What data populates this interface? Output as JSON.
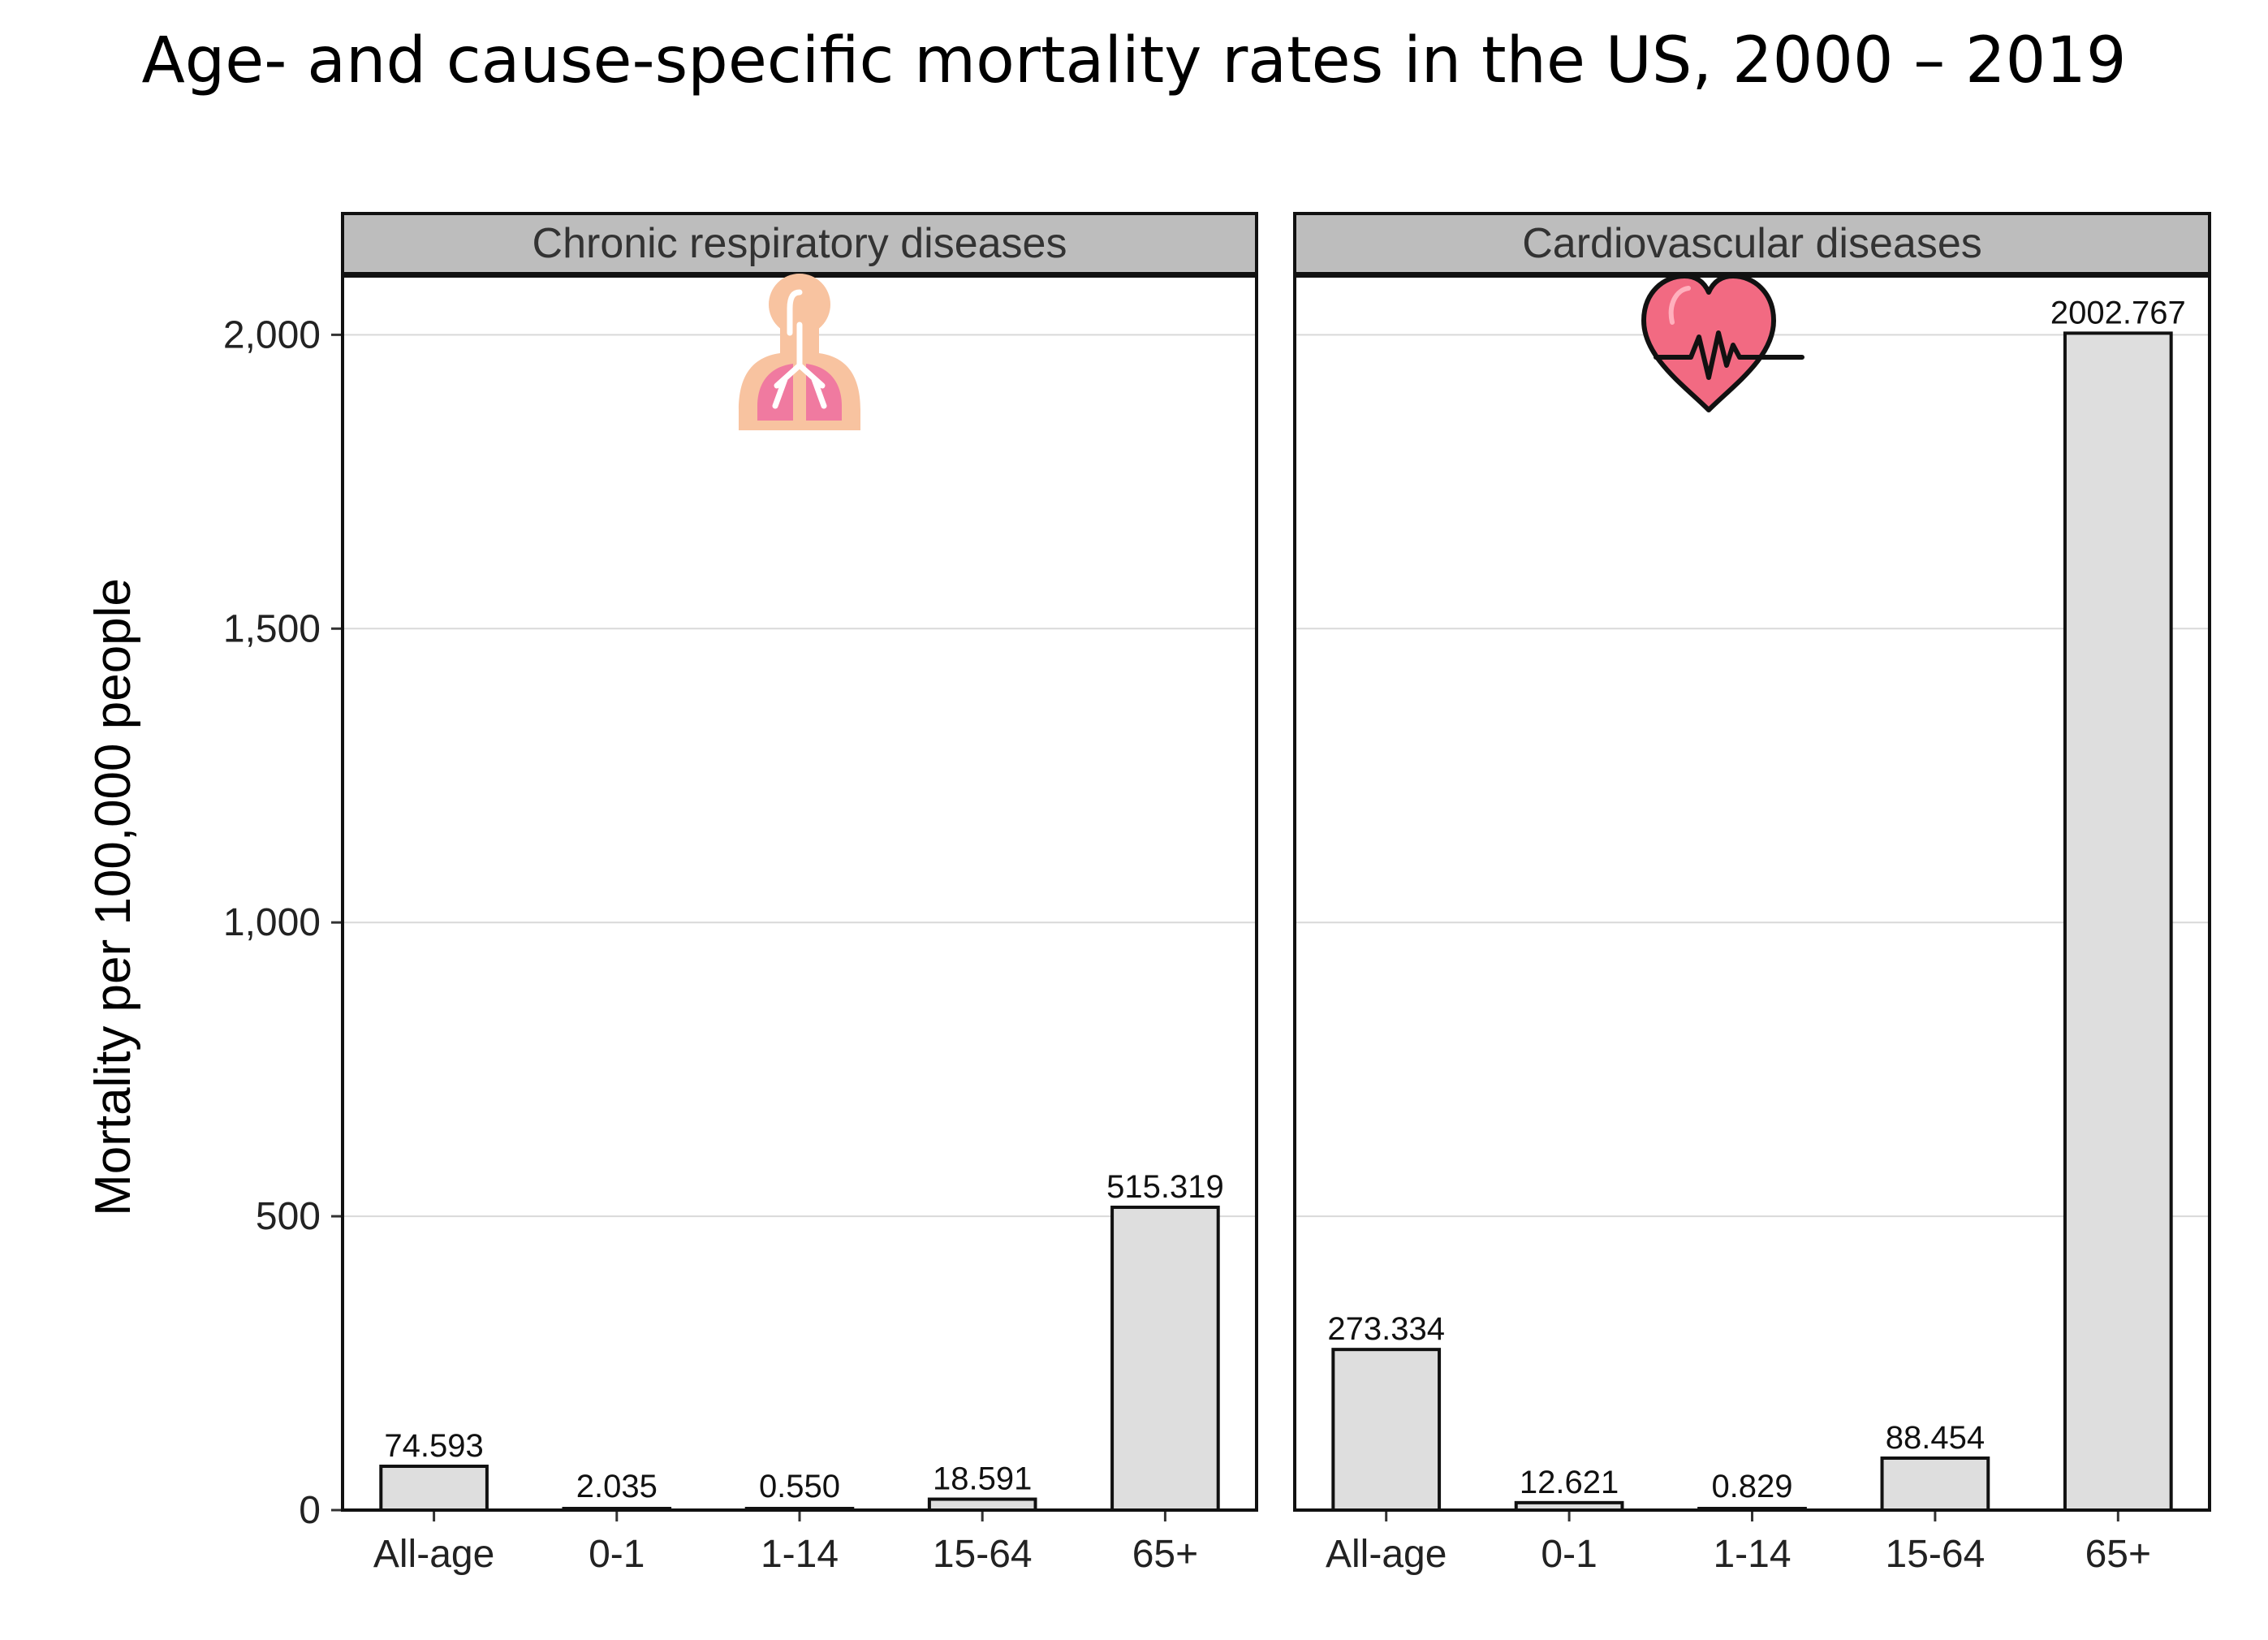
{
  "title": "Age- and cause-specific mortality rates in the US, 2000 – 2019",
  "chart_data": {
    "type": "bar",
    "ylabel": "Mortality per 100,000 people",
    "ylim": [
      0,
      2100
    ],
    "yticks": [
      0,
      500,
      1000,
      1500,
      2000
    ],
    "ytick_labels": [
      "0",
      "500",
      "1,000",
      "1,500",
      "2,000"
    ],
    "grid": true,
    "categories": [
      "All-age",
      "0-1",
      "1-14",
      "15-64",
      "65+"
    ],
    "panels": [
      {
        "name": "Chronic respiratory diseases",
        "icon": "lungs-icon",
        "values": [
          74.593,
          2.035,
          0.55,
          18.591,
          515.319
        ],
        "value_labels": [
          "74.593",
          "2.035",
          "0.550",
          "18.591",
          "515.319"
        ]
      },
      {
        "name": "Cardiovascular diseases",
        "icon": "heartbeat-icon",
        "values": [
          273.334,
          12.621,
          0.829,
          88.454,
          2002.767
        ],
        "value_labels": [
          "273.334",
          "12.621",
          "0.829",
          "88.454",
          "2002.767"
        ]
      }
    ]
  },
  "colors": {
    "bar_fill": "#dedede",
    "bar_stroke": "#111111",
    "strip_fill": "#bdbdbd",
    "grid": "#d9d9d9",
    "lungs_skin": "#f8c3a0",
    "lungs": "#f07aa0",
    "heart": "#f26a82"
  }
}
